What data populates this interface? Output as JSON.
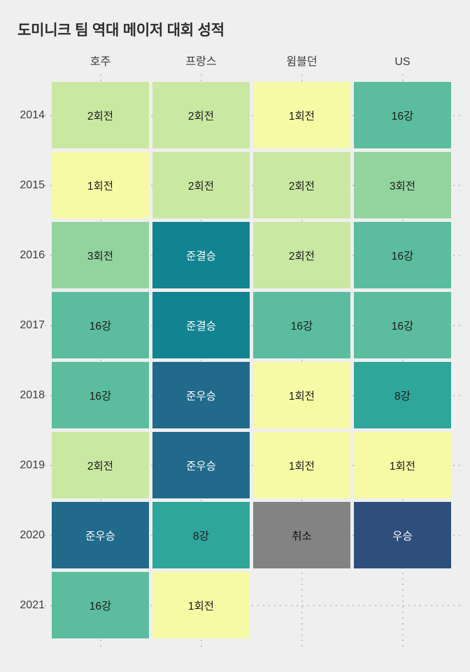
{
  "chart_data": {
    "type": "heatmap",
    "title": "도미니크 팀 역대 메이저 대회 성적",
    "columns": [
      "호주",
      "프랑스",
      "윔블던",
      "US"
    ],
    "rows": [
      "2014",
      "2015",
      "2016",
      "2017",
      "2018",
      "2019",
      "2020",
      "2021"
    ],
    "values": [
      [
        "2회전",
        "2회전",
        "1회전",
        "16강"
      ],
      [
        "1회전",
        "2회전",
        "2회전",
        "3회전"
      ],
      [
        "3회전",
        "준결승",
        "2회전",
        "16강"
      ],
      [
        "16강",
        "준결승",
        "16강",
        "16강"
      ],
      [
        "16강",
        "준우승",
        "1회전",
        "8강"
      ],
      [
        "2회전",
        "준우승",
        "1회전",
        "1회전"
      ],
      [
        "준우승",
        "8강",
        "취소",
        "우승"
      ],
      [
        "16강",
        "1회전",
        null,
        null
      ]
    ],
    "result_colors": {
      "1회전": {
        "bg": "#f7faa5",
        "fg": "#1c1c1c"
      },
      "2회전": {
        "bg": "#c9e8a2",
        "fg": "#1c1c1c"
      },
      "3회전": {
        "bg": "#93d49e",
        "fg": "#1c1c1c"
      },
      "8강": {
        "bg": "#2fa69a",
        "fg": "#1c1c1c"
      },
      "16강": {
        "bg": "#5bbd9e",
        "fg": "#1c1c1c"
      },
      "준결승": {
        "bg": "#128391",
        "fg": "#ffffff"
      },
      "준우승": {
        "bg": "#216a8c",
        "fg": "#ffffff"
      },
      "우승": {
        "bg": "#2e4e7b",
        "fg": "#ffffff"
      },
      "취소": {
        "bg": "#838383",
        "fg": "#111111"
      }
    },
    "background": "#efefef",
    "grid_color": "#c6c6c6",
    "grid_style": "dotted",
    "legend_position": "none"
  }
}
